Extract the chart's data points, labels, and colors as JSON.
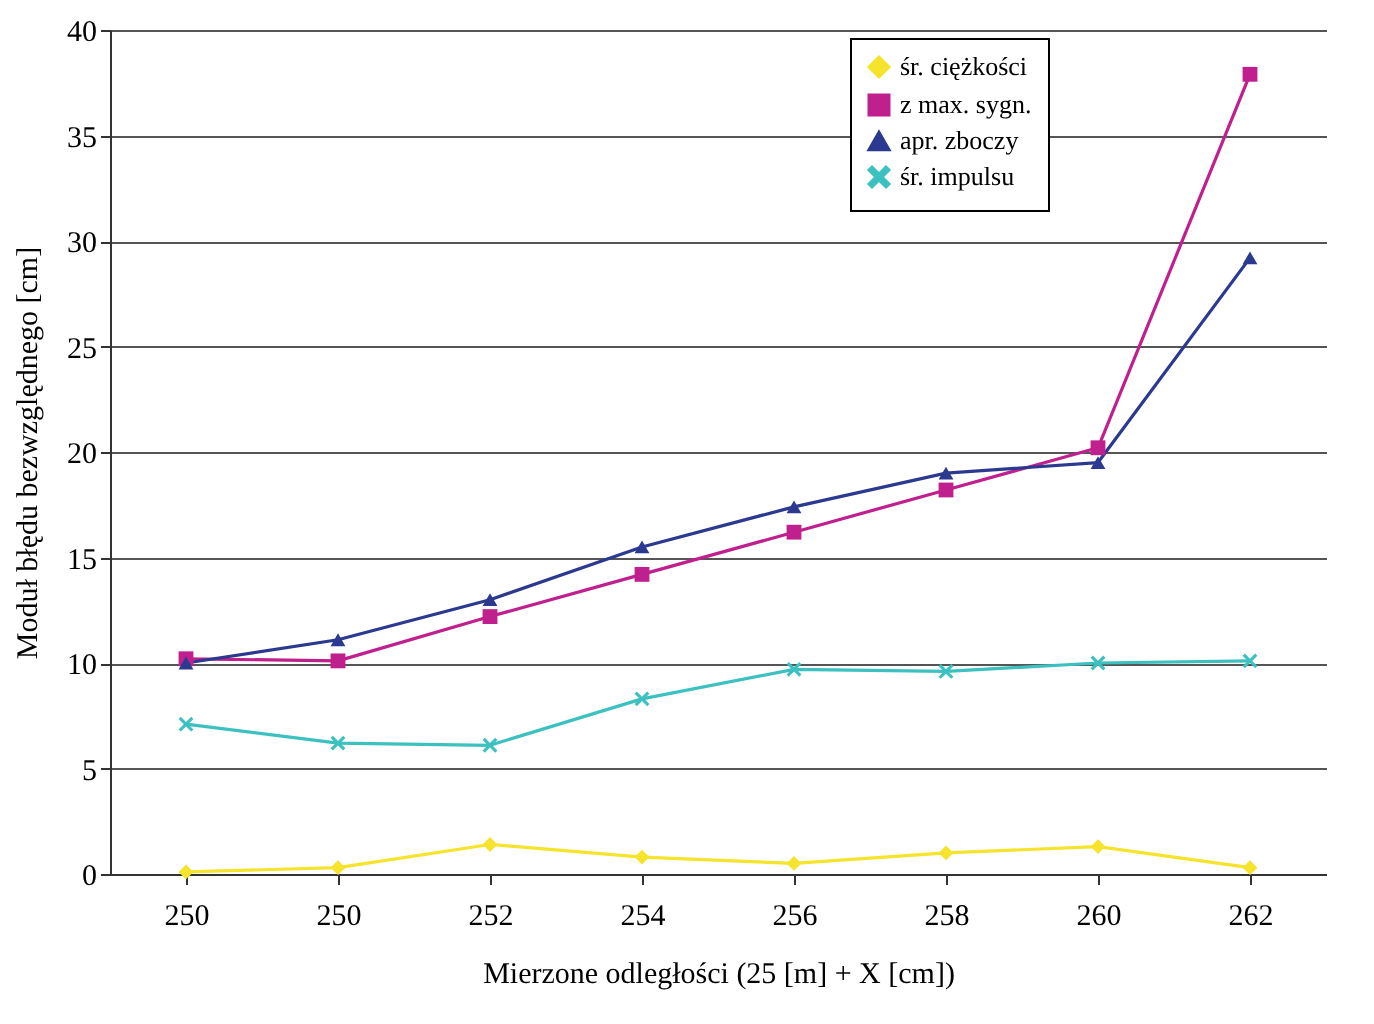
{
  "chart_data": {
    "type": "line",
    "xlabel": "Mierzone odległości (25 [m] + X [cm])",
    "ylabel": "Moduł błędu bezwzględnego [cm]",
    "categories": [
      "250",
      "250",
      "252",
      "254",
      "256",
      "258",
      "260",
      "262"
    ],
    "series": [
      {
        "name": "śr. ciężkości",
        "color": "#f5e32c",
        "marker": "diamond",
        "values": [
          0.1,
          0.3,
          1.4,
          0.8,
          0.5,
          1.0,
          1.3,
          0.3
        ]
      },
      {
        "name": "z max. sygn.",
        "color": "#c0208e",
        "marker": "square",
        "values": [
          10.2,
          10.1,
          12.2,
          14.2,
          16.2,
          18.2,
          20.2,
          37.9
        ]
      },
      {
        "name": "apr. zboczy",
        "color": "#2b3990",
        "marker": "triangle",
        "values": [
          10.0,
          11.1,
          13.0,
          15.5,
          17.4,
          19.0,
          19.5,
          29.2
        ]
      },
      {
        "name": "śr. impulsu",
        "color": "#3cc0c0",
        "marker": "cross",
        "values": [
          7.1,
          6.2,
          6.1,
          8.3,
          9.7,
          9.6,
          10.0,
          10.1
        ]
      }
    ],
    "ylim": [
      0,
      40
    ],
    "yticks": [
      0,
      5,
      10,
      15,
      20,
      25,
      30,
      35,
      40
    ],
    "grid": "y",
    "legend": "top right"
  }
}
